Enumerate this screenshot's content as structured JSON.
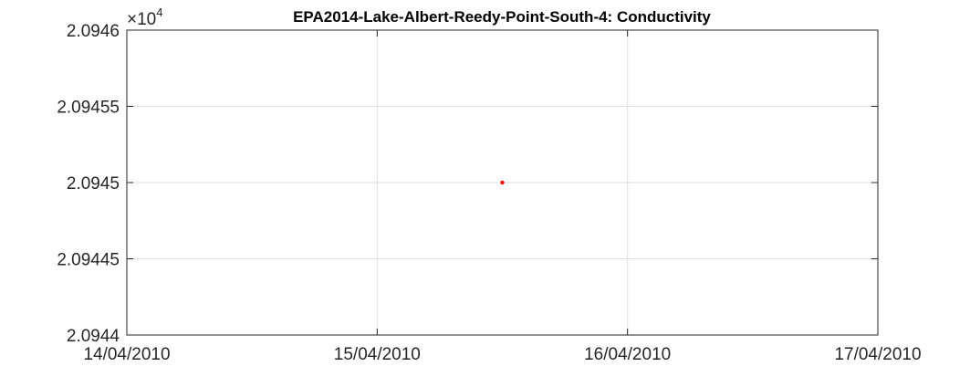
{
  "chart_data": {
    "type": "scatter",
    "title": "EPA2014-Lake-Albert-Reedy-Point-South-4: Conductivity",
    "xlabel": "",
    "ylabel": "",
    "y_multiplier": {
      "base": "×10",
      "exponent": "4"
    },
    "x_axis": {
      "type": "date",
      "range": [
        "14/04/2010",
        "17/04/2010"
      ],
      "tick_labels": [
        "14/04/2010",
        "15/04/2010",
        "16/04/2010",
        "17/04/2010"
      ]
    },
    "y_axis": {
      "range": [
        2.0944,
        2.0946
      ],
      "tick_labels": [
        "2.0944",
        "2.09445",
        "2.0945",
        "2.09455",
        "2.0946"
      ],
      "tick_values": [
        2.0944,
        2.09445,
        2.0945,
        2.09455,
        2.0946
      ]
    },
    "grid": true,
    "series": [
      {
        "color": "#ff0000",
        "marker": "dot",
        "points": [
          {
            "x": "15/04/2010 12:00",
            "y": 2.0945
          }
        ]
      }
    ]
  }
}
